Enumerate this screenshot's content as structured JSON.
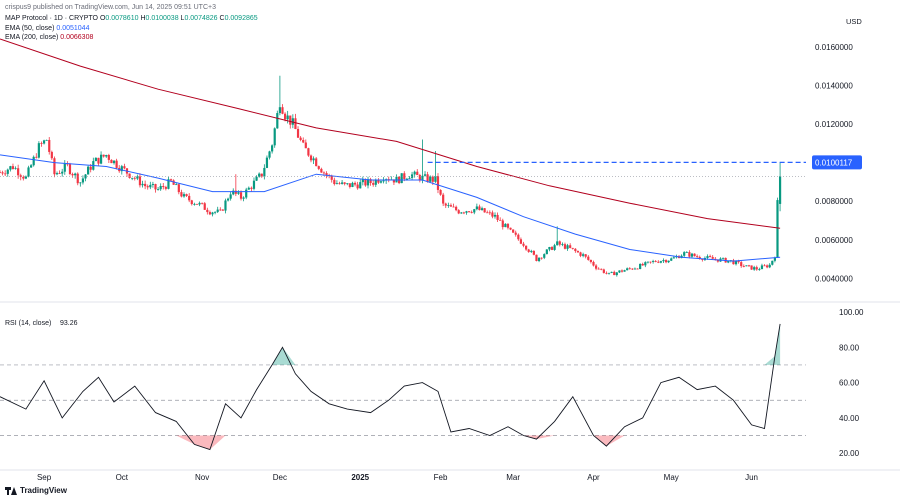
{
  "header": {
    "published": "crispus9 published on TradingView.com, Jun 14, 2025 09:51 UTC+3",
    "symbol": "MAP Protocol · 1D · CRYPTO",
    "ohlc": {
      "o_label": "O",
      "o": "0.0078610",
      "h_label": "H",
      "h": "0.0100038",
      "l_label": "L",
      "l": "0.0074826",
      "c_label": "C",
      "c": "0.0092865"
    },
    "ema50_label": "EMA (50, close)",
    "ema50_value": "0.0051044",
    "ema200_label": "EMA (200, close)",
    "ema200_value": "0.0066308"
  },
  "currency": "USD",
  "brand": "TradingView",
  "colors": {
    "up": "#089981",
    "down": "#f23645",
    "ema50": "#2962ff",
    "ema200": "#b2001e",
    "rsi": "#131722",
    "last_price": "#2962ff"
  },
  "chart_data": [
    {
      "type": "candlestick",
      "series": [
        {
          "name": "MAP Protocol",
          "kind": "candles",
          "x": [
            "2025-06-12"
          ],
          "open": [
            0.007861
          ],
          "high": [
            0.0100038
          ],
          "low": [
            0.0074826
          ],
          "close": [
            0.0092865
          ]
        },
        {
          "name": "EMA (50, close)",
          "kind": "line"
        },
        {
          "name": "EMA (200, close)",
          "kind": "line"
        }
      ],
      "price_path": [
        [
          "2024-08-15",
          0.0095
        ],
        [
          "2024-08-20",
          0.0098
        ],
        [
          "2024-08-25",
          0.0092
        ],
        [
          "2024-08-30",
          0.0108
        ],
        [
          "2024-09-02",
          0.0112
        ],
        [
          "2024-09-05",
          0.0094
        ],
        [
          "2024-09-10",
          0.0098
        ],
        [
          "2024-09-15",
          0.009
        ],
        [
          "2024-09-20",
          0.01
        ],
        [
          "2024-09-25",
          0.0104
        ],
        [
          "2024-09-30",
          0.0098
        ],
        [
          "2024-10-05",
          0.0093
        ],
        [
          "2024-10-10",
          0.0088
        ],
        [
          "2024-10-15",
          0.0086
        ],
        [
          "2024-10-20",
          0.009
        ],
        [
          "2024-10-25",
          0.0082
        ],
        [
          "2024-10-30",
          0.0079
        ],
        [
          "2024-11-04",
          0.0075
        ],
        [
          "2024-11-08",
          0.0074
        ],
        [
          "2024-11-12",
          0.0085
        ],
        [
          "2024-11-16",
          0.0082
        ],
        [
          "2024-11-20",
          0.0088
        ],
        [
          "2024-11-24",
          0.0094
        ],
        [
          "2024-11-28",
          0.011
        ],
        [
          "2024-12-01",
          0.0132
        ],
        [
          "2024-12-03",
          0.0125
        ],
        [
          "2024-12-06",
          0.012
        ],
        [
          "2024-12-10",
          0.0108
        ],
        [
          "2024-12-14",
          0.0102
        ],
        [
          "2024-12-18",
          0.0095
        ],
        [
          "2024-12-22",
          0.009
        ],
        [
          "2024-12-26",
          0.0088
        ],
        [
          "2025-01-01",
          0.0089
        ],
        [
          "2025-01-06",
          0.009
        ],
        [
          "2025-01-10",
          0.0093
        ],
        [
          "2025-01-15",
          0.0091
        ],
        [
          "2025-01-20",
          0.0094
        ],
        [
          "2025-01-25",
          0.0092
        ],
        [
          "2025-01-30",
          0.0091
        ],
        [
          "2025-02-02",
          0.0078
        ],
        [
          "2025-02-08",
          0.0075
        ],
        [
          "2025-02-15",
          0.0076
        ],
        [
          "2025-02-22",
          0.0072
        ],
        [
          "2025-02-28",
          0.0064
        ],
        [
          "2025-03-05",
          0.0058
        ],
        [
          "2025-03-10",
          0.005
        ],
        [
          "2025-03-14",
          0.0054
        ],
        [
          "2025-03-18",
          0.0058
        ],
        [
          "2025-03-22",
          0.0056
        ],
        [
          "2025-03-28",
          0.0052
        ],
        [
          "2025-04-02",
          0.0046
        ],
        [
          "2025-04-07",
          0.0042
        ],
        [
          "2025-04-12",
          0.0044
        ],
        [
          "2025-04-18",
          0.0046
        ],
        [
          "2025-04-25",
          0.0049
        ],
        [
          "2025-05-01",
          0.005
        ],
        [
          "2025-05-06",
          0.0053
        ],
        [
          "2025-05-12",
          0.0051
        ],
        [
          "2025-05-18",
          0.005
        ],
        [
          "2025-05-24",
          0.0049
        ],
        [
          "2025-05-30",
          0.0046
        ],
        [
          "2025-06-03",
          0.0045
        ],
        [
          "2025-06-08",
          0.0047
        ],
        [
          "2025-06-10",
          0.0052
        ],
        [
          "2025-06-11",
          0.0079
        ],
        [
          "2025-06-12",
          0.0093
        ]
      ],
      "spikes": [
        {
          "x": "2024-12-01",
          "high": 0.0145
        },
        {
          "x": "2025-01-25",
          "high": 0.0112
        },
        {
          "x": "2025-01-30",
          "high": 0.0106
        },
        {
          "x": "2025-03-18",
          "high": 0.0067
        },
        {
          "x": "2024-11-14",
          "high": 0.0094
        }
      ],
      "ema50": [
        [
          "2024-08-15",
          0.0104
        ],
        [
          "2024-09-05",
          0.01
        ],
        [
          "2024-09-25",
          0.0098
        ],
        [
          "2024-10-15",
          0.0092
        ],
        [
          "2024-11-05",
          0.0085
        ],
        [
          "2024-11-25",
          0.0085
        ],
        [
          "2024-12-15",
          0.0094
        ],
        [
          "2025-01-05",
          0.0091
        ],
        [
          "2025-01-25",
          0.0091
        ],
        [
          "2025-02-15",
          0.0082
        ],
        [
          "2025-03-05",
          0.0072
        ],
        [
          "2025-03-25",
          0.0063
        ],
        [
          "2025-04-15",
          0.0055
        ],
        [
          "2025-05-05",
          0.0051
        ],
        [
          "2025-05-25",
          0.0049
        ],
        [
          "2025-06-12",
          0.0051
        ]
      ],
      "ema200": [
        [
          "2024-08-15",
          0.0164
        ],
        [
          "2024-09-15",
          0.015
        ],
        [
          "2024-10-15",
          0.0138
        ],
        [
          "2024-11-15",
          0.0128
        ],
        [
          "2024-12-15",
          0.0118
        ],
        [
          "2025-01-15",
          0.0111
        ],
        [
          "2025-02-15",
          0.0098
        ],
        [
          "2025-03-15",
          0.0088
        ],
        [
          "2025-04-15",
          0.0079
        ],
        [
          "2025-05-15",
          0.0071
        ],
        [
          "2025-06-12",
          0.0066
        ]
      ],
      "resistance_level": 0.0100117,
      "last_price_label": "0.0100117",
      "ylim": [
        0.0033,
        0.0178
      ],
      "y_ticks": [
        "0.0160000",
        "0.0140000",
        "0.0120000",
        "0.0100000",
        "0.0080000",
        "0.0060000",
        "0.0040000"
      ],
      "x_ticks": [
        "Sep",
        "Oct",
        "Nov",
        "Dec",
        "2025",
        "Feb",
        "Mar",
        "Apr",
        "May",
        "Jun"
      ],
      "xlim": [
        "2024-08-15",
        "2025-06-22"
      ],
      "grid": false
    },
    {
      "type": "line",
      "title": "RSI (14, close)",
      "value_label": "93.26",
      "series": [
        {
          "name": "RSI (14, close)",
          "x": [
            "2024-08-15",
            "2024-08-25",
            "2024-09-01",
            "2024-09-08",
            "2024-09-16",
            "2024-09-22",
            "2024-09-28",
            "2024-10-06",
            "2024-10-14",
            "2024-10-22",
            "2024-10-29",
            "2024-11-04",
            "2024-11-10",
            "2024-11-16",
            "2024-11-22",
            "2024-11-28",
            "2024-12-02",
            "2024-12-07",
            "2024-12-13",
            "2024-12-20",
            "2024-12-27",
            "2025-01-05",
            "2025-01-12",
            "2025-01-18",
            "2025-01-25",
            "2025-01-31",
            "2025-02-05",
            "2025-02-12",
            "2025-02-20",
            "2025-02-27",
            "2025-03-05",
            "2025-03-10",
            "2025-03-17",
            "2025-03-24",
            "2025-04-01",
            "2025-04-06",
            "2025-04-13",
            "2025-04-20",
            "2025-04-27",
            "2025-05-04",
            "2025-05-11",
            "2025-05-18",
            "2025-05-25",
            "2025-06-01",
            "2025-06-06",
            "2025-06-10",
            "2025-06-12"
          ],
          "values": [
            52,
            45,
            61,
            40,
            55,
            63,
            49,
            58,
            43,
            38,
            25,
            22,
            48,
            40,
            56,
            70,
            80,
            65,
            55,
            48,
            45,
            43,
            50,
            58,
            60,
            55,
            32,
            34,
            30,
            35,
            30,
            28,
            38,
            52,
            30,
            24,
            35,
            40,
            60,
            63,
            56,
            58,
            50,
            36,
            34,
            75,
            93.26
          ]
        }
      ],
      "ylim": [
        15,
        100
      ],
      "y_ticks": [
        "100.00",
        "80.00",
        "60.00",
        "40.00",
        "20.00"
      ],
      "levels": [
        70,
        50,
        30
      ]
    }
  ]
}
